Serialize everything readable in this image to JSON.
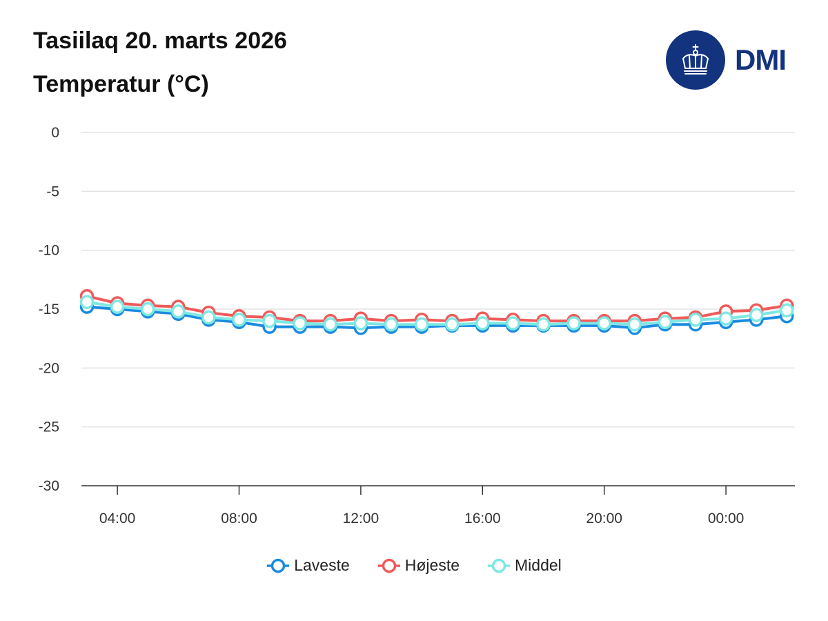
{
  "header": {
    "title": "Tasiilaq 20. marts 2026",
    "subtitle": "Temperatur (°C)",
    "logo_text": "DMI",
    "logo_color": "#14337f"
  },
  "chart_data": {
    "type": "line",
    "title": "Tasiilaq 20. marts 2026",
    "ylabel": "Temperatur (°C)",
    "xlabel": "",
    "ylim": [
      -30,
      0
    ],
    "yticks": [
      0,
      -5,
      -10,
      -15,
      -20,
      -25,
      -30
    ],
    "x_hours": [
      "03:00",
      "04:00",
      "05:00",
      "06:00",
      "07:00",
      "08:00",
      "09:00",
      "10:00",
      "11:00",
      "12:00",
      "13:00",
      "14:00",
      "15:00",
      "16:00",
      "17:00",
      "18:00",
      "19:00",
      "20:00",
      "21:00",
      "22:00",
      "23:00",
      "00:00",
      "01:00",
      "02:00"
    ],
    "xtick_labels": [
      "04:00",
      "08:00",
      "12:00",
      "16:00",
      "20:00",
      "00:00"
    ],
    "series": [
      {
        "name": "Laveste",
        "color": "#1a8be0",
        "values": [
          -14.8,
          -15.0,
          -15.2,
          -15.4,
          -15.9,
          -16.1,
          -16.5,
          -16.5,
          -16.5,
          -16.6,
          -16.5,
          -16.5,
          -16.4,
          -16.4,
          -16.4,
          -16.4,
          -16.4,
          -16.4,
          -16.6,
          -16.3,
          -16.3,
          -16.1,
          -15.9,
          -15.6
        ]
      },
      {
        "name": "Højeste",
        "color": "#f05a5a",
        "values": [
          -13.9,
          -14.5,
          -14.7,
          -14.8,
          -15.3,
          -15.6,
          -15.7,
          -16.0,
          -16.0,
          -15.8,
          -16.0,
          -15.9,
          -16.0,
          -15.8,
          -15.9,
          -16.0,
          -16.0,
          -16.0,
          -16.0,
          -15.8,
          -15.7,
          -15.2,
          -15.1,
          -14.7
        ]
      },
      {
        "name": "Middel",
        "color": "#7ee8e3",
        "values": [
          -14.4,
          -14.8,
          -15.0,
          -15.2,
          -15.7,
          -15.9,
          -16.0,
          -16.2,
          -16.3,
          -16.2,
          -16.3,
          -16.3,
          -16.3,
          -16.2,
          -16.2,
          -16.3,
          -16.2,
          -16.2,
          -16.3,
          -16.1,
          -15.9,
          -15.8,
          -15.5,
          -15.1
        ]
      }
    ],
    "legend_position": "bottom-center"
  }
}
